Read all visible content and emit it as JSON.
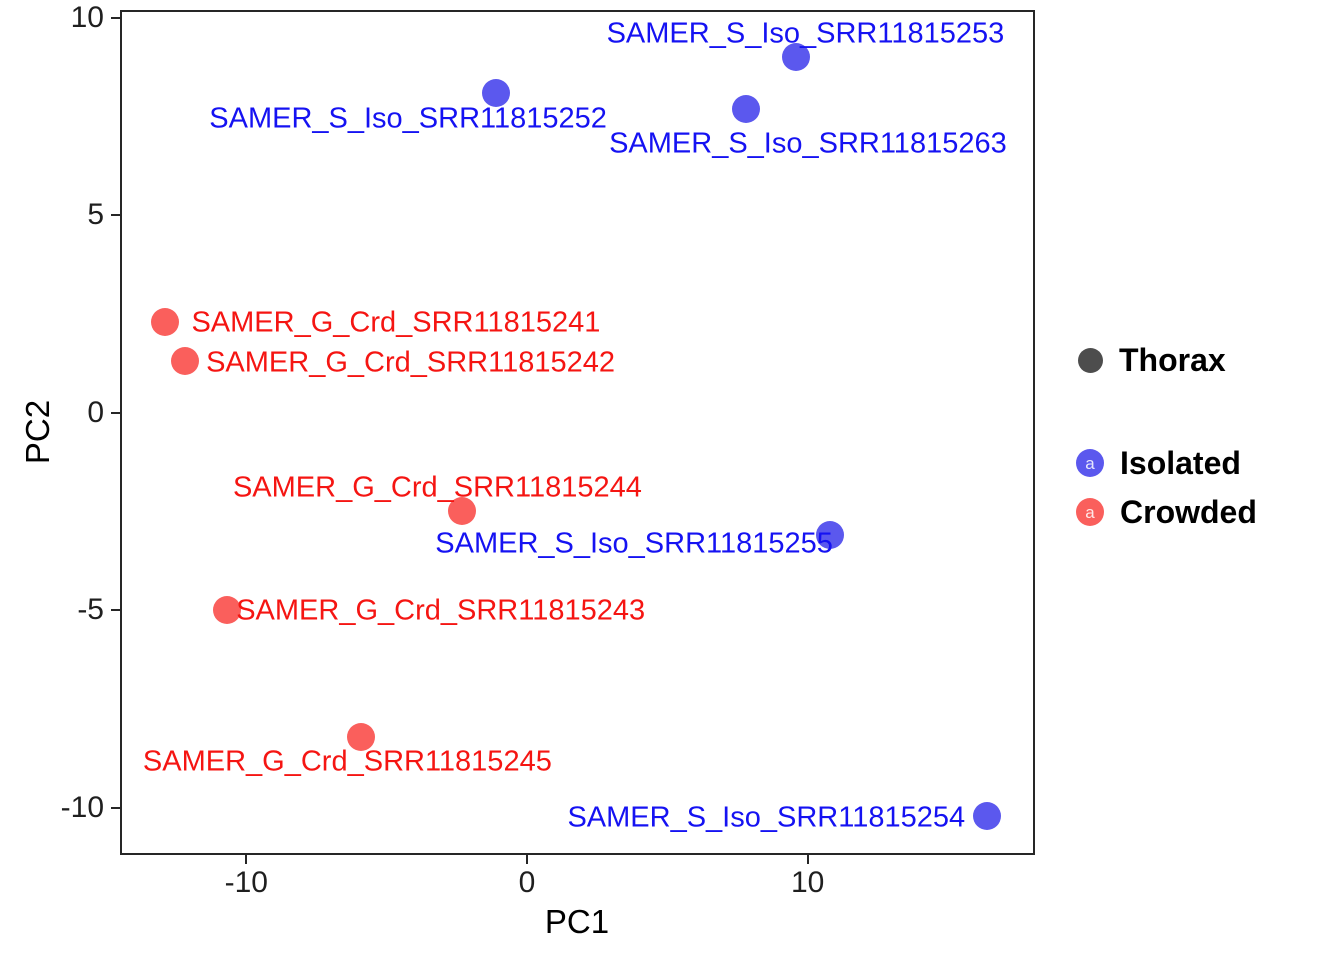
{
  "chart_data": {
    "type": "scatter",
    "title": "",
    "xlabel": "PC1",
    "ylabel": "PC2",
    "xlim": [
      -14.5,
      18.1
    ],
    "ylim": [
      -11.2,
      10.2
    ],
    "x_ticks": [
      "-10",
      "0",
      "10"
    ],
    "x_tick_values": [
      -10,
      0,
      10
    ],
    "y_ticks": [
      "10",
      "5",
      "0",
      "-5",
      "-10"
    ],
    "y_tick_values": [
      10,
      5,
      0,
      -5,
      -10
    ],
    "grid": "off",
    "legend_position": "right",
    "series": [
      {
        "name": "Isolated",
        "point_color": "#5b58ee",
        "label_color": "#1512f2",
        "points": [
          {
            "sample": "SAMER_S_Iso_SRR11815253",
            "pc1": 9.6,
            "pc2": 9.0,
            "label_dx": 9,
            "label_dy": -23
          },
          {
            "sample": "SAMER_S_Iso_SRR11815252",
            "pc1": -1.1,
            "pc2": 8.1,
            "label_dx": -88,
            "label_dy": 26
          },
          {
            "sample": "SAMER_S_Iso_SRR11815263",
            "pc1": 7.8,
            "pc2": 7.7,
            "label_dx": 62,
            "label_dy": 35
          },
          {
            "sample": "SAMER_S_Iso_SRR11815255",
            "pc1": 10.8,
            "pc2": -3.1,
            "label_dx": -196,
            "label_dy": 9
          },
          {
            "sample": "SAMER_S_Iso_SRR11815254",
            "pc1": 16.4,
            "pc2": -10.2,
            "label_dx": -221,
            "label_dy": 2
          }
        ]
      },
      {
        "name": "Crowded",
        "point_color": "#fa5f5c",
        "label_color": "#f51512",
        "points": [
          {
            "sample": "SAMER_G_Crd_SRR11815241",
            "pc1": -12.9,
            "pc2": 2.3,
            "label_dx": 231,
            "label_dy": 1
          },
          {
            "sample": "SAMER_G_Crd_SRR11815242",
            "pc1": -12.2,
            "pc2": 1.3,
            "label_dx": 226,
            "label_dy": 2
          },
          {
            "sample": "SAMER_G_Crd_SRR11815244",
            "pc1": -2.3,
            "pc2": -2.5,
            "label_dx": -25,
            "label_dy": -23
          },
          {
            "sample": "SAMER_G_Crd_SRR11815243",
            "pc1": -10.7,
            "pc2": -5.0,
            "label_dx": 214,
            "label_dy": 1
          },
          {
            "sample": "SAMER_G_Crd_SRR11815245",
            "pc1": -5.9,
            "pc2": -8.2,
            "label_dx": -14,
            "label_dy": 25
          }
        ]
      }
    ],
    "legend": {
      "size_legend": {
        "label": "Thorax",
        "key_color": "#4d4d4d"
      },
      "color_legend": [
        {
          "label": "Isolated",
          "key_color": "#5b58ee",
          "key_glyph": "a"
        },
        {
          "label": "Crowded",
          "key_color": "#fa5f5c",
          "key_glyph": "a"
        }
      ]
    }
  }
}
